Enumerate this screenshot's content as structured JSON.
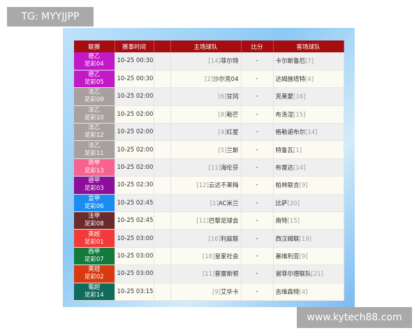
{
  "watermark_top": "TG: MYYJJPP",
  "watermark_bottom": "www.kytech88.com",
  "headers": {
    "league": "联赛",
    "time": "赛事时间",
    "home": "主场球队",
    "score": "比分",
    "away": "客场球队"
  },
  "rows": [
    {
      "league": "德乙",
      "code": "足彩04",
      "color": "#c218c8",
      "time": "10-25 00:30",
      "home_rank": "[14]",
      "home": "菲尔特",
      "score": "-",
      "away": "卡尔斯鲁厄",
      "away_rank": "[7]"
    },
    {
      "league": "德乙",
      "code": "足彩05",
      "color": "#c218c8",
      "time": "10-25 00:30",
      "home_rank": "[2]",
      "home": "沙尔克04",
      "score": "-",
      "away": "达姆施塔特",
      "away_rank": "[4]"
    },
    {
      "league": "法乙",
      "code": "足彩09",
      "color": "#a89f9f",
      "time": "10-25 02:00",
      "home_rank": "[6]",
      "home": "甘冈",
      "score": "-",
      "away": "克莱蒙",
      "away_rank": "[16]"
    },
    {
      "league": "法乙",
      "code": "足彩10",
      "color": "#a89f9f",
      "time": "10-25 02:00",
      "home_rank": "[8]",
      "home": "勒芒",
      "score": "-",
      "away": "布洛涅",
      "away_rank": "[15]"
    },
    {
      "league": "法乙",
      "code": "足彩12",
      "color": "#a89f9f",
      "time": "10-25 02:00",
      "home_rank": "[4]",
      "home": "红星",
      "score": "-",
      "away": "格勒诺布尔",
      "away_rank": "[14]"
    },
    {
      "league": "法乙",
      "code": "足彩11",
      "color": "#a89f9f",
      "time": "10-25 02:00",
      "home_rank": "[5]",
      "home": "兰斯",
      "score": "-",
      "away": "特鲁瓦",
      "away_rank": "[1]"
    },
    {
      "league": "荷甲",
      "code": "足彩13",
      "color": "#f5638e",
      "time": "10-25 02:00",
      "home_rank": "[11]",
      "home": "海伦芬",
      "score": "-",
      "away": "布雷达",
      "away_rank": "[14]"
    },
    {
      "league": "德甲",
      "code": "足彩03",
      "color": "#8b0f9a",
      "time": "10-25 02:30",
      "home_rank": "[12]",
      "home": "云达不莱梅",
      "score": "-",
      "away": "柏林联合",
      "away_rank": "[9]"
    },
    {
      "league": "意甲",
      "code": "足彩06",
      "color": "#1c8df0",
      "time": "10-25 02:45",
      "home_rank": "[1]",
      "home": "AC米兰",
      "score": "-",
      "away": "比萨",
      "away_rank": "[20]"
    },
    {
      "league": "法甲",
      "code": "足彩08",
      "color": "#6b2a2c",
      "time": "10-25 02:45",
      "home_rank": "[11]",
      "home": "巴黎足球会",
      "score": "-",
      "away": "南特",
      "away_rank": "[15]"
    },
    {
      "league": "英超",
      "code": "足彩01",
      "color": "#f23a3a",
      "time": "10-25 03:00",
      "home_rank": "[16]",
      "home": "利兹联",
      "score": "-",
      "away": "西汉姆联",
      "away_rank": "[19]"
    },
    {
      "league": "西甲",
      "code": "足彩07",
      "color": "#137a3c",
      "time": "10-25 03:00",
      "home_rank": "[18]",
      "home": "皇家社会",
      "score": "-",
      "away": "塞维利亚",
      "away_rank": "[9]"
    },
    {
      "league": "英冠",
      "code": "足彩02",
      "color": "#d93a10",
      "time": "10-25 03:00",
      "home_rank": "[11]",
      "home": "普雷斯顿",
      "score": "-",
      "away": "谢菲尔德联队",
      "away_rank": "[21]"
    },
    {
      "league": "葡超",
      "code": "足彩14",
      "color": "#0f6b5c",
      "time": "10-25 03:15",
      "home_rank": "[9]",
      "home": "艾华卡",
      "score": "-",
      "away": "吉维森特",
      "away_rank": "[4]"
    }
  ]
}
